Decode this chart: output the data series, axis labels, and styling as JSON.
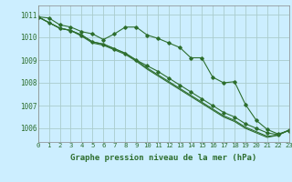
{
  "background_color": "#cceeff",
  "grid_color": "#aacccc",
  "line_color": "#2d6e2d",
  "xlabel": "Graphe pression niveau de la mer (hPa)",
  "xlabel_fontsize": 6.5,
  "xtick_fontsize": 5.2,
  "ytick_fontsize": 5.5,
  "ylim": [
    1005.4,
    1011.4
  ],
  "xlim": [
    0,
    23
  ],
  "yticks": [
    1006,
    1007,
    1008,
    1009,
    1010,
    1011
  ],
  "xticks": [
    0,
    1,
    2,
    3,
    4,
    5,
    6,
    7,
    8,
    9,
    10,
    11,
    12,
    13,
    14,
    15,
    16,
    17,
    18,
    19,
    20,
    21,
    22,
    23
  ],
  "series": [
    [
      1010.9,
      1010.85,
      1010.55,
      1010.45,
      1010.25,
      1010.15,
      1009.9,
      1010.15,
      1010.45,
      1010.45,
      1010.1,
      1009.95,
      1009.75,
      1009.55,
      1009.1,
      1009.1,
      1008.25,
      1008.0,
      1008.05,
      1007.05,
      1006.35,
      1005.95,
      1005.75,
      1005.9
    ],
    [
      1010.9,
      1010.65,
      1010.4,
      1010.3,
      1010.1,
      1009.8,
      1009.7,
      1009.5,
      1009.3,
      1009.0,
      1008.75,
      1008.5,
      1008.2,
      1007.9,
      1007.6,
      1007.3,
      1007.0,
      1006.7,
      1006.5,
      1006.2,
      1006.0,
      1005.8,
      1005.72,
      1005.92
    ],
    [
      1010.9,
      1010.65,
      1010.4,
      1010.3,
      1010.1,
      1009.8,
      1009.7,
      1009.5,
      1009.3,
      1009.0,
      1008.65,
      1008.35,
      1008.05,
      1007.75,
      1007.45,
      1007.15,
      1006.85,
      1006.55,
      1006.35,
      1006.05,
      1005.85,
      1005.65,
      1005.7,
      1005.92
    ],
    [
      1010.9,
      1010.65,
      1010.4,
      1010.3,
      1010.05,
      1009.75,
      1009.65,
      1009.45,
      1009.25,
      1008.95,
      1008.6,
      1008.3,
      1008.0,
      1007.7,
      1007.4,
      1007.1,
      1006.8,
      1006.5,
      1006.3,
      1006.0,
      1005.8,
      1005.6,
      1005.7,
      1005.92
    ]
  ],
  "marker_series": [
    0,
    1
  ],
  "marker": "D",
  "marker_size": 1.8,
  "linewidth": 0.8
}
